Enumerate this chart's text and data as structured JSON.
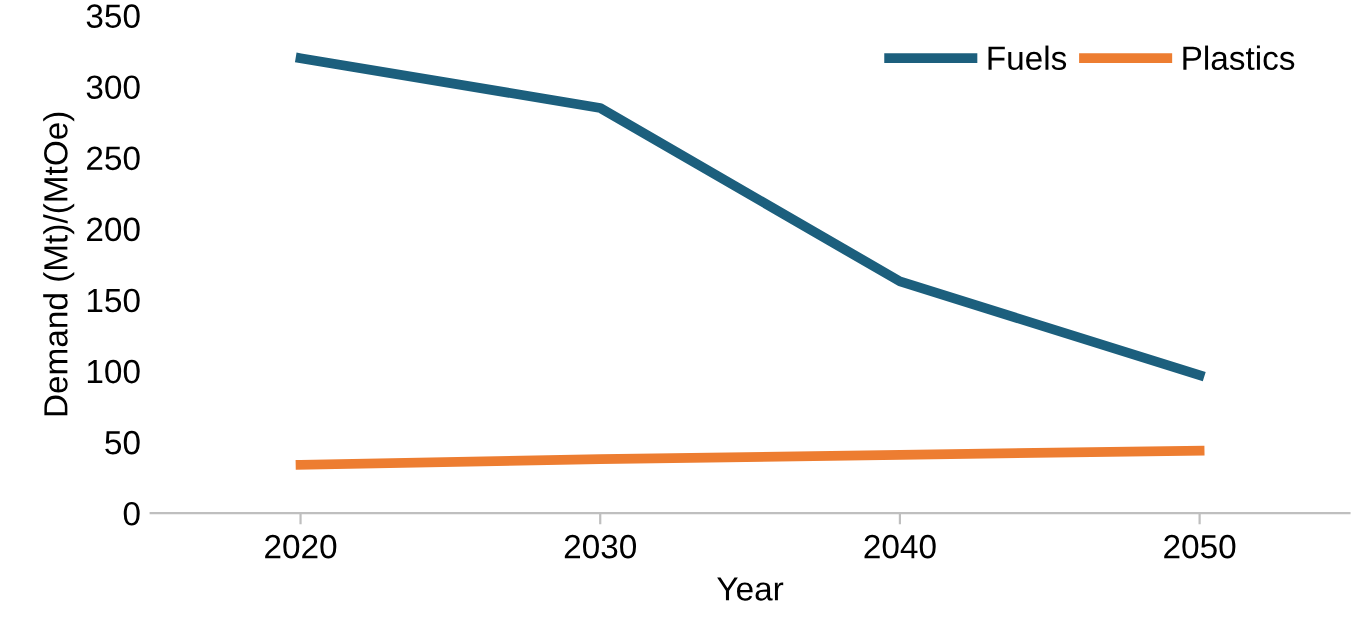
{
  "chart_data": {
    "type": "line",
    "xlabel": "Year",
    "ylabel": "Demand (Mt)/(MtOe)",
    "categories": [
      "2020",
      "2030",
      "2040",
      "2050"
    ],
    "series": [
      {
        "name": "Fuels",
        "color": "#1c5f7d",
        "values": [
          320,
          285,
          163,
          97
        ]
      },
      {
        "name": "Plastics",
        "color": "#ed7d31",
        "values": [
          34,
          38,
          41,
          44
        ]
      }
    ],
    "ylim": [
      0,
      350
    ],
    "yticks": [
      0,
      50,
      100,
      150,
      200,
      250,
      300,
      350
    ],
    "grid": false,
    "legend": "top right",
    "marker": "none",
    "line_style": "solid"
  }
}
